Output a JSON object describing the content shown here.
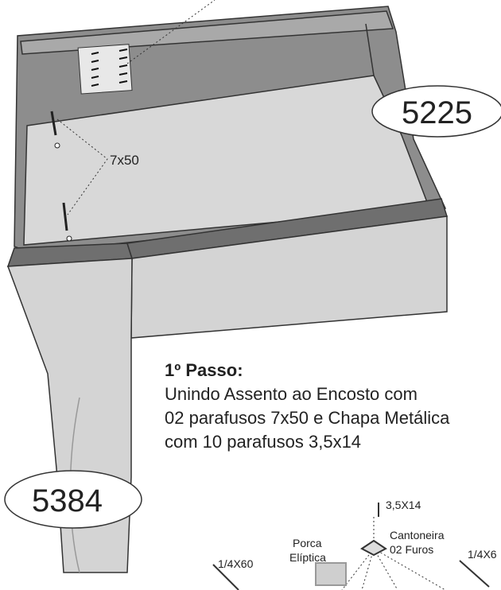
{
  "parts": [
    "5225",
    "5384"
  ],
  "dimension": "7x50",
  "step": {
    "title": "1º Passo:",
    "lines": [
      "Unindo Assento ao Encosto com",
      "02 parafusos 7x50 e Chapa Metálica",
      "com 10 parafusos 3,5x14"
    ]
  },
  "hardware": {
    "screw_small": "3,5X14",
    "bracket": [
      "Cantoneira",
      "02 Furos"
    ],
    "nut": [
      "Porca",
      "Elíptica"
    ],
    "bolt_left": "1/4X60",
    "bolt_right": "1/4X6"
  }
}
